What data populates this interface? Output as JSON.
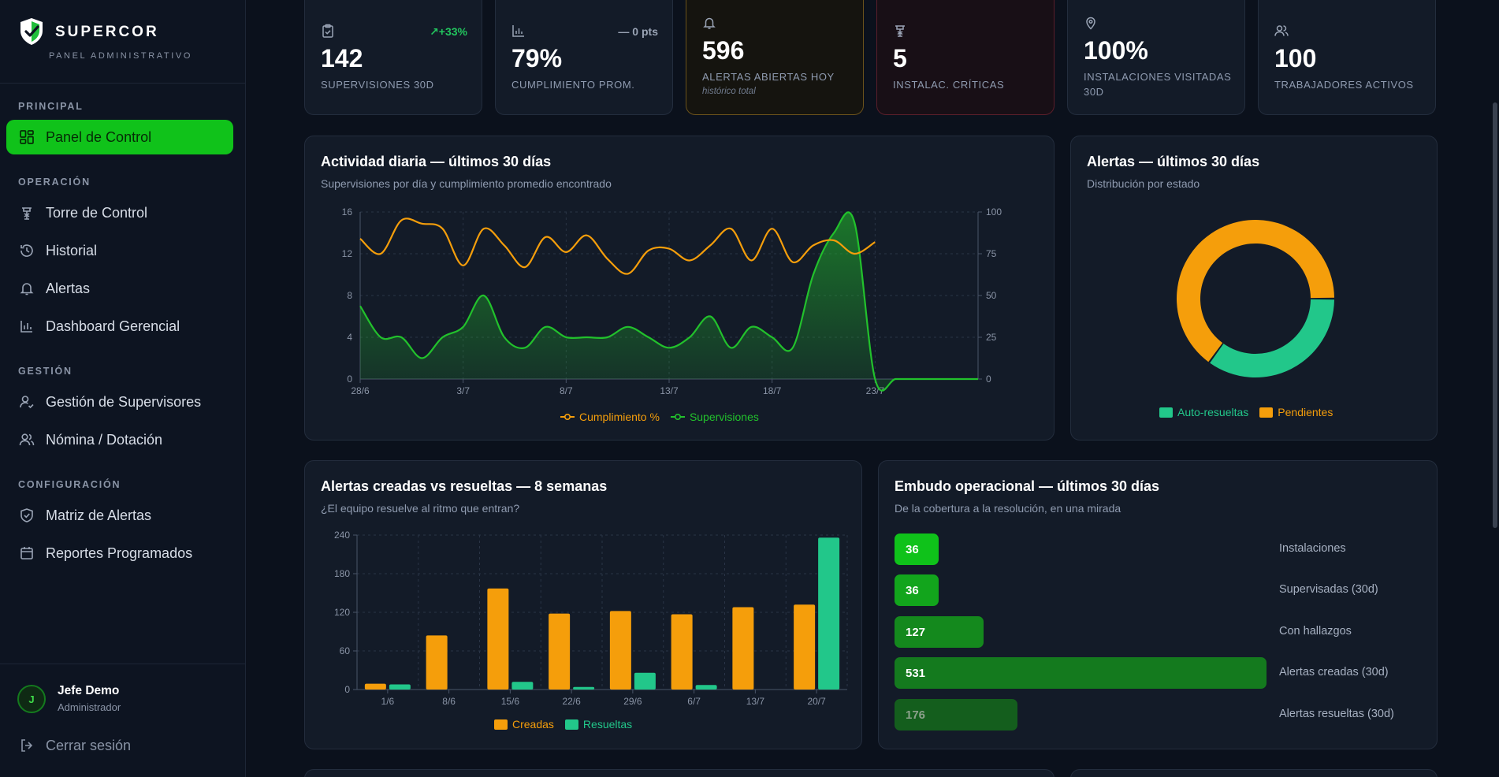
{
  "brand": {
    "name": "SUPERCOR",
    "subtitle": "PANEL ADMINISTRATIVO"
  },
  "sidebar": {
    "sections": {
      "principal": "PRINCIPAL",
      "operacion": "OPERACIÓN",
      "gestion": "GESTIÓN",
      "configuracion": "CONFIGURACIÓN"
    },
    "items": {
      "panel": "Panel de Control",
      "torre": "Torre de Control",
      "historial": "Historial",
      "alertas": "Alertas",
      "dashboard": "Dashboard Gerencial",
      "supervisores": "Gestión de Supervisores",
      "nomina": "Nómina / Dotación",
      "matriz": "Matriz de Alertas",
      "reportes": "Reportes Programados"
    },
    "active": "panel",
    "active_color": "#10c21a"
  },
  "user": {
    "initial": "J",
    "name": "Jefe Demo",
    "role": "Administrador",
    "logout": "Cerrar sesión"
  },
  "kpis": [
    {
      "value": "142",
      "label": "SUPERVISIONES 30D",
      "delta": "+33%",
      "icon": "clipboard-check-icon"
    },
    {
      "value": "79%",
      "label": "CUMPLIMIENTO PROM.",
      "delta": "— 0 pts",
      "icon": "bar-chart-icon"
    },
    {
      "value": "596",
      "label": "ALERTAS ABIERTAS HOY",
      "note": "histórico total",
      "icon": "bell-icon"
    },
    {
      "value": "5",
      "label": "INSTALAC. CRÍTICAS",
      "icon": "tower-icon"
    },
    {
      "value": "100%",
      "label": "INSTALACIONES VISITADAS 30D",
      "icon": "map-pin-icon"
    },
    {
      "value": "100",
      "label": "TRABAJADORES ACTIVOS",
      "icon": "users-icon"
    }
  ],
  "colors": {
    "orange": "#f59e0b",
    "green": "#22c12c",
    "teal": "#22c78a",
    "delta_up": "#22c55e"
  },
  "activity": {
    "title": "Actividad diaria — últimos 30 días",
    "subtitle": "Supervisiones por día y cumplimiento promedio encontrado",
    "legend": {
      "cumplimiento": "Cumplimiento %",
      "supervisiones": "Supervisiones"
    }
  },
  "alerts_donut": {
    "title": "Alertas — últimos 30 días",
    "subtitle": "Distribución por estado",
    "legend": {
      "auto": "Auto-resueltas",
      "pendientes": "Pendientes"
    }
  },
  "weekly": {
    "title": "Alertas creadas vs resueltas — 8 semanas",
    "subtitle": "¿El equipo resuelve al ritmo que entran?",
    "legend": {
      "creadas": "Creadas",
      "resueltas": "Resueltas"
    }
  },
  "funnel": {
    "title": "Embudo operacional — últimos 30 días",
    "subtitle": "De la cobertura a la resolución, en una mirada",
    "max": 531,
    "rows": [
      {
        "value": 36,
        "label": "Instalaciones",
        "color": "#0fc21a"
      },
      {
        "value": 36,
        "label": "Supervisadas (30d)",
        "color": "#12a51c"
      },
      {
        "value": 127,
        "label": "Con hallazgos",
        "color": "#14891d"
      },
      {
        "value": 531,
        "label": "Alertas creadas (30d)",
        "color": "#147a1e"
      },
      {
        "value": 176,
        "label": "Alertas resueltas (30d)",
        "color": "#145e1d"
      }
    ]
  },
  "chart_data": [
    {
      "type": "line",
      "x": [
        "28/6",
        "29/6",
        "30/6",
        "1/7",
        "2/7",
        "3/7",
        "4/7",
        "5/7",
        "6/7",
        "7/7",
        "8/7",
        "9/7",
        "10/7",
        "11/7",
        "12/7",
        "13/7",
        "14/7",
        "15/7",
        "16/7",
        "17/7",
        "18/7",
        "19/7",
        "20/7",
        "21/7",
        "22/7",
        "23/7",
        "24/7",
        "25/7",
        "26/7",
        "27/7",
        "28/7"
      ],
      "xticks": [
        "28/6",
        "3/7",
        "8/7",
        "13/7",
        "18/7",
        "23/7"
      ],
      "series": [
        {
          "name": "Cumplimiento %",
          "axis": "right",
          "values": [
            84,
            75,
            95,
            93,
            90,
            68,
            90,
            80,
            67,
            85,
            76,
            86,
            72,
            63,
            77,
            78,
            71,
            80,
            90,
            71,
            90,
            70,
            80,
            83,
            75,
            82,
            null,
            null,
            null,
            null,
            null
          ]
        },
        {
          "name": "Supervisiones",
          "axis": "left",
          "values": [
            7,
            4,
            4,
            2,
            4,
            5,
            8,
            4,
            3,
            5,
            4,
            4,
            4,
            5,
            4,
            3,
            4,
            6,
            3,
            5,
            4,
            3,
            10,
            14,
            15,
            0,
            0,
            0,
            0,
            0,
            0
          ]
        }
      ],
      "yleft": {
        "ticks": [
          0,
          4,
          8,
          12,
          16
        ],
        "lim": [
          0,
          16
        ]
      },
      "yright": {
        "ticks": [
          0,
          25,
          50,
          75,
          100
        ],
        "lim": [
          0,
          100
        ]
      }
    },
    {
      "type": "pie",
      "donut": true,
      "slices": [
        {
          "name": "Auto-resueltas",
          "value": 35
        },
        {
          "name": "Pendientes",
          "value": 65
        }
      ]
    },
    {
      "type": "bar",
      "categories": [
        "1/6",
        "8/6",
        "15/6",
        "22/6",
        "29/6",
        "6/7",
        "13/7",
        "20/7"
      ],
      "series": [
        {
          "name": "Creadas",
          "values": [
            9,
            84,
            157,
            118,
            122,
            117,
            128,
            132
          ]
        },
        {
          "name": "Resueltas",
          "values": [
            8,
            0,
            12,
            4,
            26,
            7,
            0,
            236
          ]
        }
      ],
      "yticks": [
        0,
        60,
        120,
        180,
        240
      ],
      "ylim": [
        0,
        240
      ]
    }
  ]
}
